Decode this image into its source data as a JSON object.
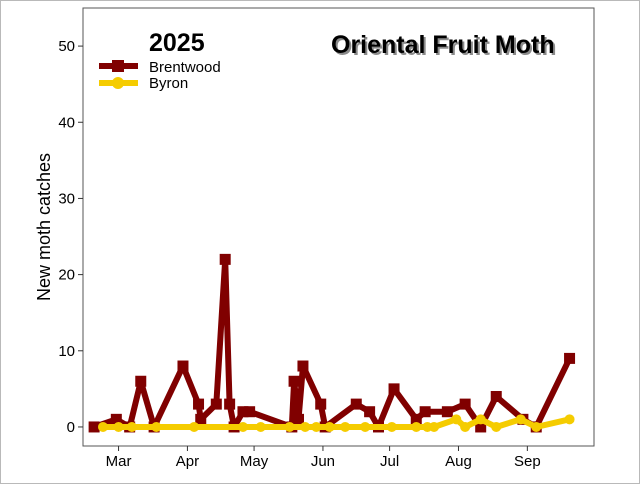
{
  "chart_data": {
    "type": "line",
    "title": "Oriental Fruit Moth",
    "subtitle": "2025",
    "xlabel": "",
    "ylabel": "New moth catches",
    "ylim": [
      -2.5,
      55
    ],
    "yticks": [
      0,
      10,
      20,
      30,
      40,
      50
    ],
    "xlim": [
      "2025-02-13",
      "2025-10-01"
    ],
    "xticks": [
      {
        "label": "Mar",
        "date": "2025-03-01"
      },
      {
        "label": "Apr",
        "date": "2025-04-01"
      },
      {
        "label": "May",
        "date": "2025-05-01"
      },
      {
        "label": "Jun",
        "date": "2025-06-01"
      },
      {
        "label": "Jul",
        "date": "2025-07-01"
      },
      {
        "label": "Aug",
        "date": "2025-08-01"
      },
      {
        "label": "Sep",
        "date": "2025-09-01"
      }
    ],
    "grid": false,
    "legend_position": "top-left",
    "series": [
      {
        "name": "Brentwood",
        "color": "#800000",
        "marker": "square",
        "points": [
          {
            "x": "2025-02-18",
            "y": 0
          },
          {
            "x": "2025-02-28",
            "y": 1
          },
          {
            "x": "2025-03-06",
            "y": 0
          },
          {
            "x": "2025-03-11",
            "y": 6
          },
          {
            "x": "2025-03-17",
            "y": 0
          },
          {
            "x": "2025-03-30",
            "y": 8
          },
          {
            "x": "2025-04-06",
            "y": 3
          },
          {
            "x": "2025-04-07",
            "y": 1
          },
          {
            "x": "2025-04-14",
            "y": 3
          },
          {
            "x": "2025-04-18",
            "y": 22
          },
          {
            "x": "2025-04-20",
            "y": 3
          },
          {
            "x": "2025-04-22",
            "y": 0
          },
          {
            "x": "2025-04-26",
            "y": 2
          },
          {
            "x": "2025-04-29",
            "y": 2
          },
          {
            "x": "2025-05-18",
            "y": 0
          },
          {
            "x": "2025-05-19",
            "y": 6
          },
          {
            "x": "2025-05-21",
            "y": 1
          },
          {
            "x": "2025-05-23",
            "y": 8
          },
          {
            "x": "2025-05-31",
            "y": 3
          },
          {
            "x": "2025-06-02",
            "y": 0
          },
          {
            "x": "2025-06-16",
            "y": 3
          },
          {
            "x": "2025-06-22",
            "y": 2
          },
          {
            "x": "2025-06-26",
            "y": 0
          },
          {
            "x": "2025-07-03",
            "y": 5
          },
          {
            "x": "2025-07-13",
            "y": 1
          },
          {
            "x": "2025-07-17",
            "y": 2
          },
          {
            "x": "2025-07-27",
            "y": 2
          },
          {
            "x": "2025-08-04",
            "y": 3
          },
          {
            "x": "2025-08-11",
            "y": 0
          },
          {
            "x": "2025-08-18",
            "y": 4
          },
          {
            "x": "2025-08-30",
            "y": 1
          },
          {
            "x": "2025-09-05",
            "y": 0
          },
          {
            "x": "2025-09-20",
            "y": 9
          }
        ]
      },
      {
        "name": "Byron",
        "color": "#F5CC00",
        "marker": "circle",
        "points": [
          {
            "x": "2025-02-22",
            "y": 0
          },
          {
            "x": "2025-03-01",
            "y": 0
          },
          {
            "x": "2025-03-07",
            "y": 0
          },
          {
            "x": "2025-03-18",
            "y": 0
          },
          {
            "x": "2025-04-04",
            "y": 0
          },
          {
            "x": "2025-04-26",
            "y": 0
          },
          {
            "x": "2025-05-04",
            "y": 0
          },
          {
            "x": "2025-05-17",
            "y": 0
          },
          {
            "x": "2025-05-24",
            "y": 0
          },
          {
            "x": "2025-05-29",
            "y": 0
          },
          {
            "x": "2025-06-04",
            "y": 0
          },
          {
            "x": "2025-06-11",
            "y": 0
          },
          {
            "x": "2025-06-20",
            "y": 0
          },
          {
            "x": "2025-07-02",
            "y": 0
          },
          {
            "x": "2025-07-13",
            "y": 0
          },
          {
            "x": "2025-07-18",
            "y": 0
          },
          {
            "x": "2025-07-21",
            "y": 0
          },
          {
            "x": "2025-07-31",
            "y": 1
          },
          {
            "x": "2025-08-04",
            "y": 0
          },
          {
            "x": "2025-08-11",
            "y": 1
          },
          {
            "x": "2025-08-18",
            "y": 0
          },
          {
            "x": "2025-08-29",
            "y": 1
          },
          {
            "x": "2025-09-05",
            "y": 0
          },
          {
            "x": "2025-09-20",
            "y": 1
          }
        ]
      }
    ]
  }
}
